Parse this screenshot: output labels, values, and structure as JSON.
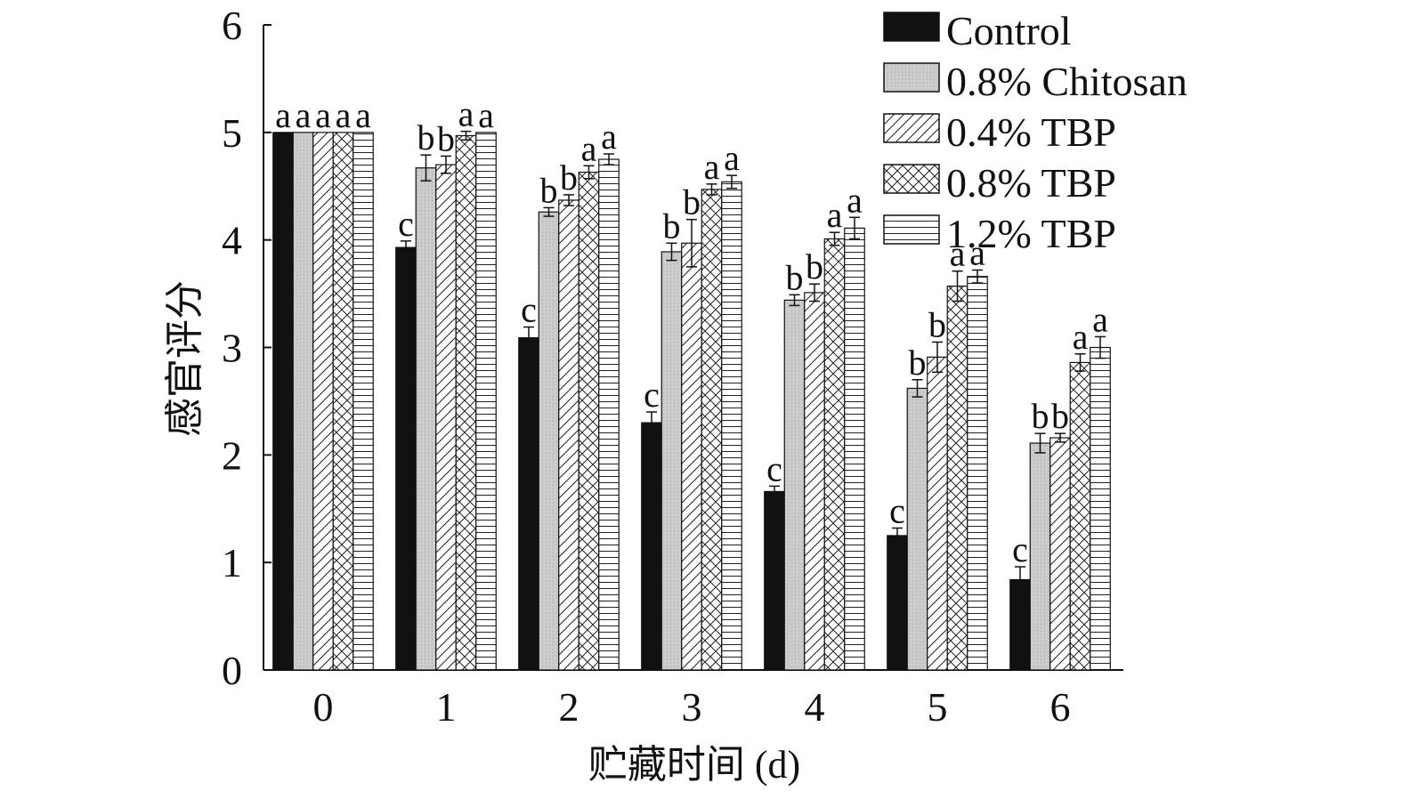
{
  "chart_data": {
    "type": "bar",
    "title": "",
    "xlabel": "贮藏时间 (d)",
    "ylabel": "感官评分",
    "ylim": [
      0,
      6
    ],
    "yticks": [
      "0",
      "1",
      "2",
      "3",
      "4",
      "5",
      "6"
    ],
    "categories": [
      "0",
      "1",
      "2",
      "3",
      "4",
      "5",
      "6"
    ],
    "legend_position": "top-right",
    "series": [
      {
        "name": "Control",
        "pattern": "solid",
        "color": "#111111",
        "values": [
          5.0,
          3.93,
          3.09,
          2.3,
          1.66,
          1.25,
          0.84
        ],
        "errors": [
          0,
          0.06,
          0.1,
          0.1,
          0.05,
          0.07,
          0.12
        ],
        "labels": [
          "a",
          "c",
          "c",
          "c",
          "c",
          "c",
          "c"
        ]
      },
      {
        "name": "0.8% Chitosan",
        "pattern": "gray",
        "color": "#c8c8c8",
        "values": [
          5.0,
          4.67,
          4.26,
          3.89,
          3.44,
          2.62,
          2.11
        ],
        "errors": [
          0,
          0.12,
          0.04,
          0.08,
          0.05,
          0.08,
          0.09
        ],
        "labels": [
          "a",
          "b",
          "b",
          "b",
          "b",
          "b",
          "b"
        ]
      },
      {
        "name": "0.4% TBP",
        "pattern": "diagonal",
        "color": "#ffffff",
        "values": [
          5.0,
          4.7,
          4.37,
          3.97,
          3.51,
          2.91,
          2.16
        ],
        "errors": [
          0,
          0.08,
          0.05,
          0.22,
          0.08,
          0.14,
          0.04
        ],
        "labels": [
          "a",
          "b",
          "b",
          "b",
          "b",
          "b",
          "b"
        ]
      },
      {
        "name": "0.8% TBP",
        "pattern": "crosshatch",
        "color": "#ffffff",
        "values": [
          5.0,
          4.97,
          4.63,
          4.47,
          4.01,
          3.57,
          2.86
        ],
        "errors": [
          0,
          0.04,
          0.06,
          0.05,
          0.06,
          0.14,
          0.08
        ],
        "labels": [
          "a",
          "a",
          "a",
          "a",
          "a",
          "a",
          "a"
        ]
      },
      {
        "name": "1.2% TBP",
        "pattern": "horizontal",
        "color": "#ffffff",
        "values": [
          5.0,
          5.0,
          4.75,
          4.54,
          4.11,
          3.66,
          3.0
        ],
        "errors": [
          0,
          0,
          0.05,
          0.06,
          0.1,
          0.06,
          0.1
        ],
        "labels": [
          "a",
          "a",
          "a",
          "a",
          "a",
          "a",
          "a"
        ]
      }
    ]
  }
}
